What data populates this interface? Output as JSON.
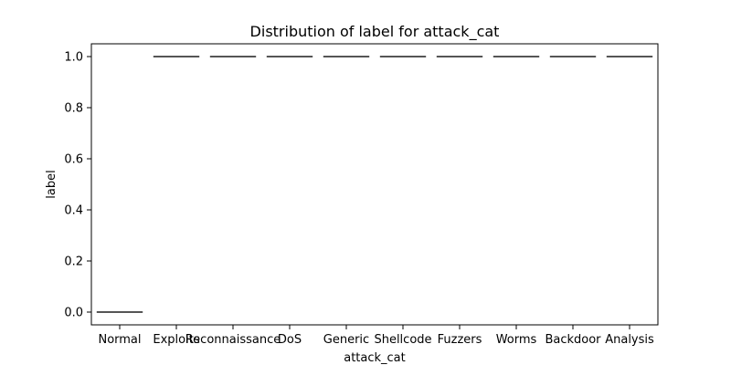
{
  "chart_data": {
    "type": "box",
    "title": "Distribution of label for attack_cat",
    "xlabel": "attack_cat",
    "ylabel": "label",
    "categories": [
      "Normal",
      "Exploits",
      "Reconnaissance",
      "DoS",
      "Generic",
      "Shellcode",
      "Fuzzers",
      "Worms",
      "Backdoor",
      "Analysis"
    ],
    "values": [
      0,
      1,
      1,
      1,
      1,
      1,
      1,
      1,
      1,
      1
    ],
    "ylim": [
      -0.05,
      1.05
    ],
    "yticks": [
      "0.0",
      "0.2",
      "0.4",
      "0.6",
      "0.8",
      "1.0"
    ],
    "grid": false,
    "legend": "none",
    "colors": {
      "box_edge": "#4d4d4d",
      "axis": "#000000"
    }
  }
}
